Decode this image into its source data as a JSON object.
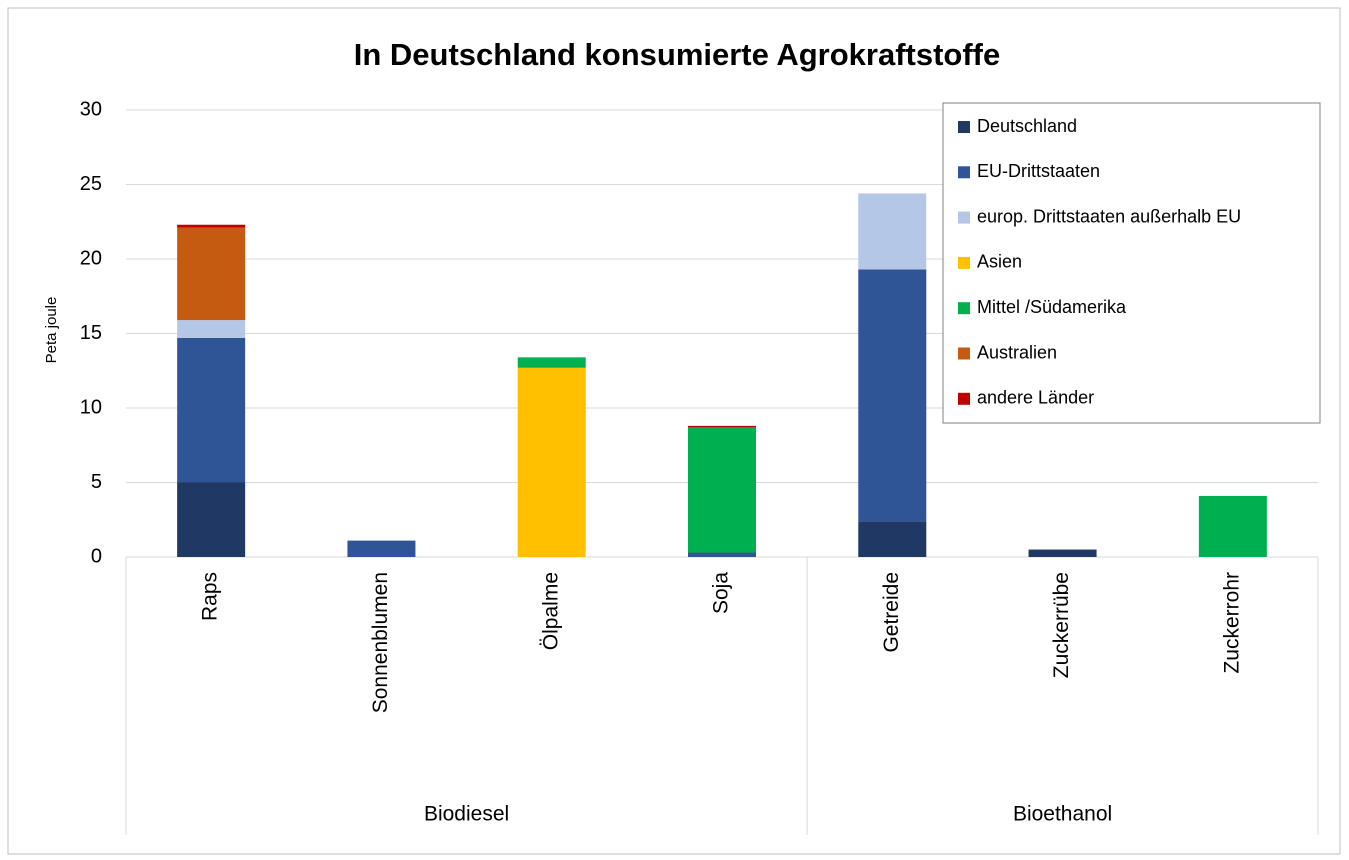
{
  "chart_data": {
    "type": "stacked-bar",
    "title": "In Deutschland  konsumierte Agrokraftstoffe",
    "y_label": "Peta joule",
    "categories": [
      "Raps",
      "Sonnenblumen",
      "Ölpalme",
      "Soja",
      "Getreide",
      "Zuckerrübe",
      "Zuckerrohr"
    ],
    "groups": [
      {
        "name": "Biodiesel",
        "size": 4
      },
      {
        "name": "Bioethanol",
        "size": 3
      }
    ],
    "series": [
      {
        "name": "Deutschland",
        "color": "#203864",
        "values": [
          5.0,
          0,
          0,
          0,
          2.4,
          0.5,
          0
        ]
      },
      {
        "name": "EU-Drittstaaten",
        "color": "#2f5597",
        "values": [
          9.7,
          1.1,
          0,
          0.3,
          16.9,
          0,
          0
        ]
      },
      {
        "name": "europ. Drittstaaten außerhalb EU",
        "color": "#b4c7e7",
        "values": [
          1.2,
          0,
          0,
          0,
          5.1,
          0,
          0
        ]
      },
      {
        "name": "Asien",
        "color": "#ffc000",
        "values": [
          0,
          0,
          12.7,
          0,
          0,
          0,
          0
        ]
      },
      {
        "name": "Mittel /Südamerika",
        "color": "#00b050",
        "values": [
          0,
          0,
          0.7,
          8.4,
          0,
          0,
          4.1
        ]
      },
      {
        "name": "Australien",
        "color": "#c55a11",
        "values": [
          6.2,
          0,
          0,
          0,
          0,
          0,
          0
        ]
      },
      {
        "name": "andere Länder",
        "color": "#c00000",
        "values": [
          0.2,
          0,
          0,
          0.1,
          0,
          0,
          0
        ]
      }
    ],
    "ylim": [
      0,
      30
    ],
    "yticks": [
      0,
      5,
      10,
      15,
      20,
      25,
      30
    ],
    "grid": true,
    "legend": "upper right"
  }
}
